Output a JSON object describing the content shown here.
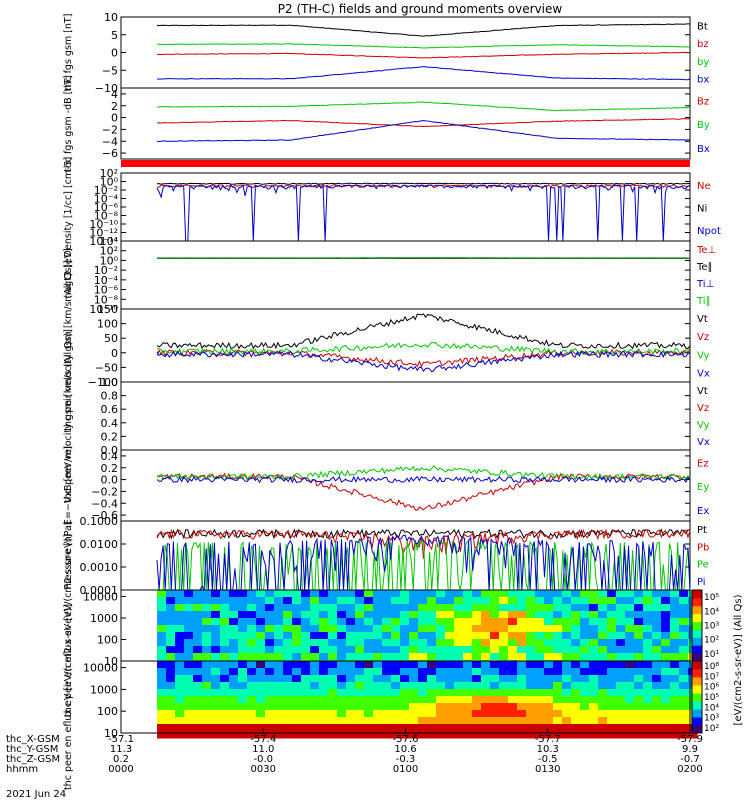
{
  "title": "P2 (TH-C) fields and ground moments overview",
  "footer": {
    "date": "2021 Jun 24",
    "rows": [
      {
        "label": "thc_X-GSM",
        "values": [
          "-57.1",
          "-57.4",
          "-57.6",
          "-57.7",
          "-57.9"
        ]
      },
      {
        "label": "thc_Y-GSM",
        "values": [
          "11.3",
          "11.0",
          "10.6",
          "10.3",
          "9.9"
        ]
      },
      {
        "label": "thc_Z-GSM",
        "values": [
          "0.2",
          "-0.0",
          "-0.3",
          "-0.5",
          "-0.7"
        ]
      },
      {
        "label": "hhmm",
        "values": [
          "0000",
          "0030",
          "0100",
          "0130",
          "0200"
        ]
      }
    ]
  },
  "colorbar": {
    "label": "[eV/(cm2-s-sr-eV)] (All Qs)",
    "colors": [
      "#3a007a",
      "#0000ff",
      "#00a0ff",
      "#00ffb0",
      "#40ff00",
      "#ffff00",
      "#ffa000",
      "#ff2000",
      "#cc0000"
    ]
  },
  "chart_data": [
    {
      "type": "line",
      "ylabel": "thc fgs gsm [nT]",
      "ylim": [
        -10,
        10
      ],
      "ticks": [
        "10",
        "5",
        "0",
        "−5",
        "−10"
      ],
      "tickvals": [
        10,
        5,
        0,
        -5,
        -10
      ],
      "x": [
        "0000",
        "0030",
        "0100",
        "0130",
        "0200"
      ],
      "series": [
        {
          "name": "Bt",
          "color": "#000000",
          "values": [
            7.6,
            7.7,
            4.6,
            7.6,
            8.0
          ]
        },
        {
          "name": "bz",
          "color": "#cc0000",
          "values": [
            -0.5,
            -0.3,
            -1.5,
            -0.5,
            0.0
          ]
        },
        {
          "name": "by",
          "color": "#00c800",
          "values": [
            2.3,
            2.4,
            1.3,
            2.2,
            1.6
          ]
        },
        {
          "name": "bx",
          "color": "#0000cc",
          "values": [
            -7.4,
            -7.4,
            -4.0,
            -7.2,
            -7.6
          ]
        }
      ]
    },
    {
      "type": "line",
      "ylabel": "thc fgs gsm -dB [nT]",
      "ylim": [
        -7,
        5
      ],
      "ticks": [
        "4",
        "2",
        "0",
        "−2",
        "−4",
        "−6"
      ],
      "tickvals": [
        4,
        2,
        0,
        -2,
        -4,
        -6
      ],
      "x": [
        "0000",
        "0030",
        "0100",
        "0130",
        "0200"
      ],
      "series": [
        {
          "name": "Bz",
          "color": "#cc0000",
          "values": [
            -0.9,
            -0.5,
            -1.5,
            -0.6,
            -0.2
          ]
        },
        {
          "name": "By",
          "color": "#00c800",
          "values": [
            1.8,
            1.9,
            2.6,
            1.2,
            1.7
          ]
        },
        {
          "name": "Bx",
          "color": "#0000cc",
          "values": [
            -4.0,
            -3.8,
            -0.5,
            -3.5,
            -3.8
          ]
        }
      ]
    },
    {
      "type": "line",
      "ylabel": "Density [1/cc] [cm-3]",
      "ylim": [
        -14,
        2
      ],
      "scale": "log",
      "ticks": [
        "10²",
        "10⁰",
        "10⁻²",
        "10⁻⁴",
        "10⁻⁶",
        "10⁻⁸",
        "10⁻¹⁰",
        "10⁻¹²",
        "10⁻¹⁴"
      ],
      "tickvals": [
        2,
        0,
        -2,
        -4,
        -6,
        -8,
        -10,
        -12,
        -14
      ],
      "x": [
        "0000",
        "0030",
        "0100",
        "0130",
        "0200"
      ],
      "series": [
        {
          "name": "Ne",
          "color": "#cc0000",
          "values": [
            0.1,
            0.1,
            0.1,
            0.1,
            0.1
          ]
        },
        {
          "name": "Ni",
          "color": "#000000",
          "values": [
            0.3,
            0.3,
            0.35,
            0.3,
            0.3
          ]
        },
        {
          "name": "Npot",
          "color": "#0000cc",
          "values": [
            0.05,
            0.05,
            0.1,
            0.05,
            0.05
          ]
        }
      ]
    },
    {
      "type": "line",
      "ylabel": "magt3 [eV]",
      "ylim": [
        -10,
        4
      ],
      "scale": "log",
      "ticks": [
        "10⁴",
        "10²",
        "10⁰",
        "10⁻²",
        "10⁻⁴",
        "10⁻⁶",
        "10⁻⁸",
        "10⁻¹⁰"
      ],
      "tickvals": [
        4,
        2,
        0,
        -2,
        -4,
        -6,
        -8,
        -10
      ],
      "x": [
        "0000",
        "0030",
        "0100",
        "0130",
        "0200"
      ],
      "series": [
        {
          "name": "Te⊥",
          "color": "#cc0000",
          "values": [
            2.6,
            2.6,
            2.6,
            2.6,
            2.6
          ]
        },
        {
          "name": "Te∥",
          "color": "#000000",
          "values": [
            2.8,
            2.8,
            2.8,
            2.8,
            2.8
          ]
        },
        {
          "name": "Ti⊥",
          "color": "#0000cc",
          "values": [
            3.3,
            3.3,
            3.5,
            3.3,
            3.3
          ]
        },
        {
          "name": "Ti∥",
          "color": "#00c800",
          "values": [
            3.1,
            3.1,
            3.3,
            3.1,
            3.1
          ]
        }
      ]
    },
    {
      "type": "line",
      "ylabel": "thc peir velocity gsm [km/s (All Qs)]",
      "ylim": [
        -100,
        150
      ],
      "ticks": [
        "150",
        "100",
        "50",
        "0",
        "−50",
        "−100"
      ],
      "tickvals": [
        150,
        100,
        50,
        0,
        -50,
        -100
      ],
      "x": [
        "0000",
        "0030",
        "0100",
        "0130",
        "0200"
      ],
      "series": [
        {
          "name": "Vt",
          "color": "#000000",
          "values": [
            25,
            25,
            130,
            25,
            25
          ]
        },
        {
          "name": "Vz",
          "color": "#cc0000",
          "values": [
            0,
            0,
            -40,
            0,
            0
          ]
        },
        {
          "name": "Vy",
          "color": "#00c800",
          "values": [
            5,
            5,
            30,
            5,
            5
          ]
        },
        {
          "name": "Vx",
          "color": "#0000cc",
          "values": [
            -5,
            -5,
            -60,
            -5,
            -5
          ]
        }
      ]
    },
    {
      "type": "line",
      "ylabel": "thc peer velocity gsm [km/s (All Qs)]",
      "ylim": [
        0,
        1
      ],
      "ticks": [
        "1.0",
        "0.8",
        "0.6",
        "0.4",
        "0.2",
        "0.0"
      ],
      "tickvals": [
        1.0,
        0.8,
        0.6,
        0.4,
        0.2,
        0.0
      ],
      "x": [],
      "series": [
        {
          "name": "Vt",
          "color": "#000000",
          "values": []
        },
        {
          "name": "Vz",
          "color": "#cc0000",
          "values": []
        },
        {
          "name": "Vy",
          "color": "#00c800",
          "values": []
        },
        {
          "name": "Vx",
          "color": "#0000cc",
          "values": []
        }
      ]
    },
    {
      "type": "line",
      "ylabel": "E=−VxB [mV/m]",
      "ylim": [
        -0.7,
        0.5
      ],
      "ticks": [
        "0.4",
        "0.2",
        "0.0",
        "−0.2",
        "−0.4",
        "−0.6"
      ],
      "tickvals": [
        0.4,
        0.2,
        0.0,
        -0.2,
        -0.4,
        -0.6
      ],
      "x": [
        "0000",
        "0030",
        "0100",
        "0130",
        "0200"
      ],
      "series": [
        {
          "name": "Ez",
          "color": "#cc0000",
          "values": [
            0.05,
            0.05,
            -0.5,
            0.05,
            0.05
          ]
        },
        {
          "name": "Ey",
          "color": "#00c800",
          "values": [
            0.05,
            0.05,
            0.2,
            0.05,
            0.05
          ]
        },
        {
          "name": "Ex",
          "color": "#0000cc",
          "values": [
            0.0,
            0.0,
            0.0,
            0.0,
            0.0
          ]
        }
      ]
    },
    {
      "type": "line",
      "ylabel": "Pressure [nPa]",
      "ylim": [
        -4,
        -1
      ],
      "scale": "log",
      "ticks": [
        "0.1000",
        "0.0100",
        "0.0010",
        "0.0001"
      ],
      "tickvals": [
        -1,
        -2,
        -3,
        -4
      ],
      "x": [
        "0000",
        "0030",
        "0100",
        "0130",
        "0200"
      ],
      "series": [
        {
          "name": "Pt",
          "color": "#000000",
          "values": [
            0.03,
            0.03,
            0.03,
            0.03,
            0.031
          ]
        },
        {
          "name": "Pb",
          "color": "#cc0000",
          "values": [
            0.028,
            0.028,
            0.011,
            0.028,
            0.031
          ]
        },
        {
          "name": "Pe",
          "color": "#00c800",
          "values": [
            0.0003,
            0.0003,
            0.0035,
            0.0003,
            0.0002
          ]
        },
        {
          "name": "Pi",
          "color": "#0000cc",
          "values": [
            0.002,
            0.002,
            0.015,
            0.002,
            0.002
          ]
        }
      ]
    },
    {
      "type": "heatmap",
      "ylabel": "thc peir en eflux eV [eV/(cm2-s-sr-eV)]",
      "ylim": [
        10,
        20000
      ],
      "scale": "log",
      "ticks": [
        "10000",
        "1000",
        "100",
        "10"
      ],
      "tickvals": [
        4,
        3,
        2,
        1
      ],
      "cbar_ticks": [
        "10⁵",
        "10⁴",
        "10³",
        "10²",
        "10¹"
      ],
      "cbar_label": "eV/(cm2-s-sr-eV)"
    },
    {
      "type": "heatmap",
      "ylabel": "thc peer en eflux eV [eV/(cm2-s-sr-eV)]",
      "ylim": [
        10,
        20000
      ],
      "scale": "log",
      "ticks": [
        "10000",
        "1000",
        "100",
        "10"
      ],
      "tickvals": [
        4,
        3,
        2,
        1
      ],
      "cbar_ticks": [
        "10⁸",
        "10⁷",
        "10⁶",
        "10⁵",
        "10⁴",
        "10³",
        "10²"
      ],
      "cbar_label": "(All Qs)"
    }
  ]
}
